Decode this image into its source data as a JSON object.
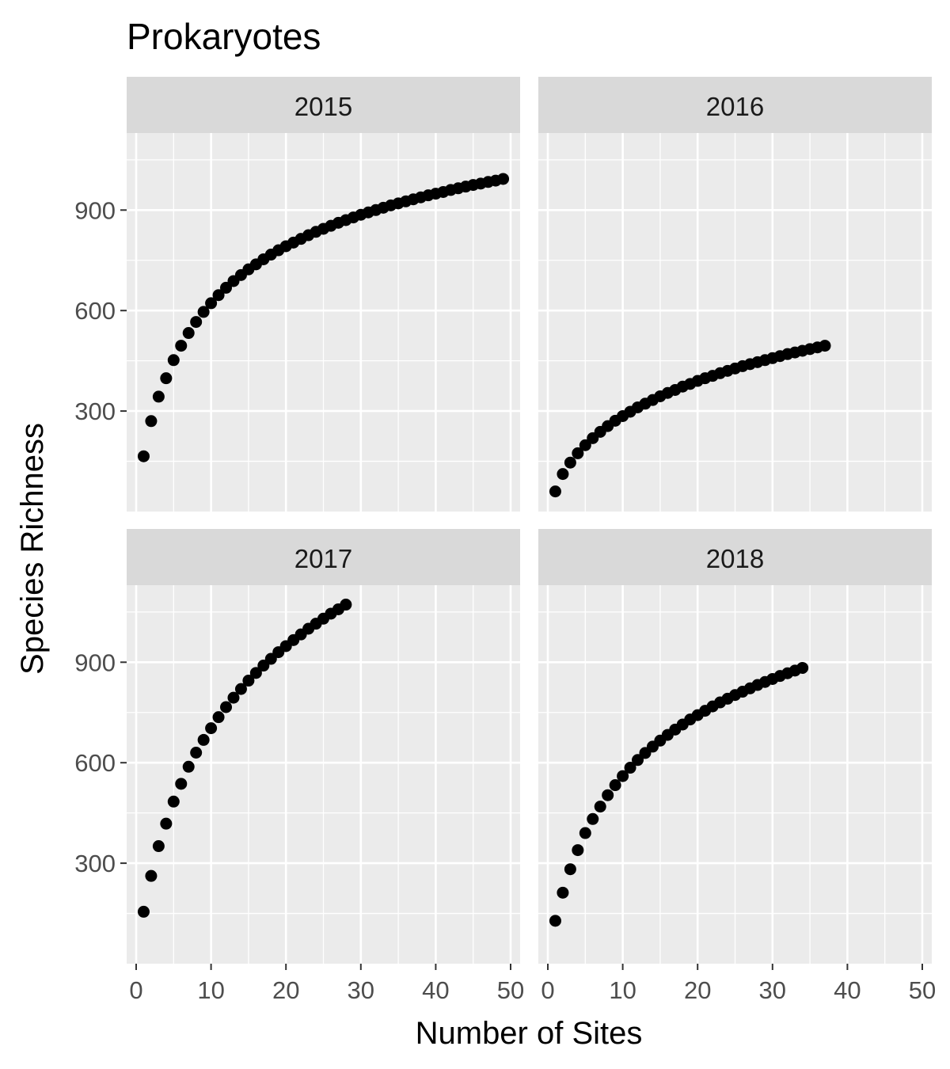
{
  "figure": {
    "title": "Prokaryotes",
    "xlabel": "Number of Sites",
    "ylabel": "Species Richness"
  },
  "colors": {
    "panel_background": "#EBEBEB",
    "strip_background": "#D9D9D9",
    "grid_line": "#FFFFFF",
    "point": "#000000",
    "tick_label": "#4D4D4D",
    "text": "#1A1A1A"
  },
  "chart_data": {
    "type": "scatter",
    "layout": "facet_wrap 2x2",
    "grid": true,
    "legend": "none",
    "xlim": [
      0,
      50
    ],
    "ylim": [
      0,
      1130
    ],
    "xticks": [
      0,
      10,
      20,
      30,
      40,
      50
    ],
    "yticks": [
      300,
      600,
      900
    ],
    "xtick_labels": [
      "0",
      "10",
      "20",
      "30",
      "40",
      "50"
    ],
    "ytick_labels": [
      "300",
      "600",
      "900"
    ],
    "panels": [
      {
        "label": "2015",
        "x": [
          1,
          2,
          3,
          4,
          5,
          6,
          7,
          8,
          9,
          10,
          11,
          12,
          13,
          14,
          15,
          16,
          17,
          18,
          19,
          20,
          21,
          22,
          23,
          24,
          25,
          26,
          27,
          28,
          29,
          30,
          31,
          32,
          33,
          34,
          35,
          36,
          37,
          38,
          39,
          40,
          41,
          42,
          43,
          44,
          45,
          46,
          47,
          48,
          49
        ],
        "y": [
          165,
          270,
          343,
          398,
          452,
          495,
          533,
          566,
          596,
          622,
          646,
          668,
          688,
          706,
          723,
          738,
          753,
          767,
          780,
          792,
          803,
          814,
          825,
          835,
          844,
          853,
          862,
          870,
          878,
          886,
          893,
          900,
          907,
          914,
          920,
          926,
          932,
          938,
          944,
          949,
          954,
          960,
          965,
          970,
          975,
          979,
          984,
          988,
          993
        ]
      },
      {
        "label": "2016",
        "x": [
          1,
          2,
          3,
          4,
          5,
          6,
          7,
          8,
          9,
          10,
          11,
          12,
          13,
          14,
          15,
          16,
          17,
          18,
          19,
          20,
          21,
          22,
          23,
          24,
          25,
          26,
          27,
          28,
          29,
          30,
          31,
          32,
          33,
          34,
          35,
          36,
          37
        ],
        "y": [
          60,
          112,
          146,
          174,
          198,
          219,
          238,
          255,
          271,
          285,
          298,
          311,
          322,
          333,
          344,
          354,
          363,
          373,
          381,
          390,
          398,
          405,
          413,
          420,
          427,
          434,
          440,
          446,
          452,
          458,
          464,
          470,
          475,
          480,
          485,
          490,
          495
        ]
      },
      {
        "label": "2017",
        "x": [
          1,
          2,
          3,
          4,
          5,
          6,
          7,
          8,
          9,
          10,
          11,
          12,
          13,
          14,
          15,
          16,
          17,
          18,
          19,
          20,
          21,
          22,
          23,
          24,
          25,
          26,
          27,
          28
        ],
        "y": [
          155,
          262,
          351,
          418,
          484,
          537,
          588,
          630,
          668,
          703,
          736,
          766,
          794,
          820,
          845,
          868,
          890,
          910,
          930,
          948,
          966,
          983,
          1000,
          1015,
          1030,
          1045,
          1058,
          1072
        ]
      },
      {
        "label": "2018",
        "x": [
          1,
          2,
          3,
          4,
          5,
          6,
          7,
          8,
          9,
          10,
          11,
          12,
          13,
          14,
          15,
          16,
          17,
          18,
          19,
          20,
          21,
          22,
          23,
          24,
          25,
          26,
          27,
          28,
          29,
          30,
          31,
          32,
          33,
          34
        ],
        "y": [
          128,
          212,
          282,
          339,
          390,
          432,
          469,
          503,
          533,
          560,
          585,
          608,
          629,
          648,
          666,
          683,
          699,
          714,
          729,
          742,
          755,
          768,
          780,
          791,
          802,
          812,
          822,
          832,
          841,
          850,
          859,
          867,
          875,
          883
        ]
      }
    ]
  }
}
